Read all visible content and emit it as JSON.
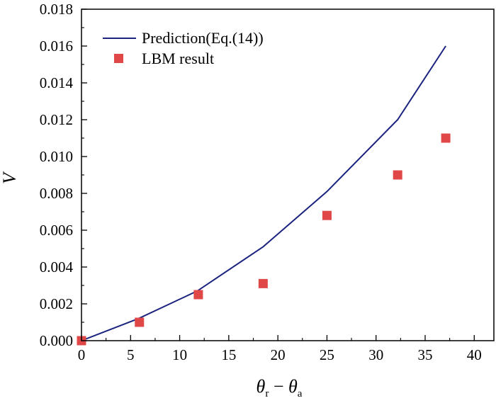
{
  "chart_data": {
    "type": "line",
    "xlabel": {
      "main1": "θ",
      "sub1": "r",
      "sep": " − ",
      "main2": "θ",
      "sub2": "a"
    },
    "ylabel": "V",
    "xlim": [
      0,
      42
    ],
    "ylim": [
      0,
      0.018
    ],
    "xticks": [
      0,
      5,
      10,
      15,
      20,
      25,
      30,
      35,
      40
    ],
    "yticks": [
      0.0,
      0.002,
      0.004,
      0.006,
      0.008,
      0.01,
      0.012,
      0.014,
      0.016,
      0.018
    ],
    "ytick_labels": [
      "0.000",
      "0.002",
      "0.004",
      "0.006",
      "0.008",
      "0.010",
      "0.012",
      "0.014",
      "0.016",
      "0.018"
    ],
    "grid": false,
    "legend_position": "top-left",
    "series": [
      {
        "name": "Prediction(Eq.(14))",
        "kind": "line",
        "color": "#1a237e",
        "x": [
          0,
          5.8,
          11.8,
          18.5,
          25,
          32.2,
          37.1
        ],
        "y": [
          0.0,
          0.0012,
          0.0027,
          0.0051,
          0.0081,
          0.012,
          0.016
        ]
      },
      {
        "name": "LBM result",
        "kind": "scatter",
        "color": "#e04848",
        "x": [
          0,
          5.9,
          11.9,
          18.5,
          25.0,
          32.2,
          37.1
        ],
        "y": [
          0.0,
          0.001,
          0.0025,
          0.0031,
          0.0068,
          0.009,
          0.011
        ]
      }
    ]
  }
}
